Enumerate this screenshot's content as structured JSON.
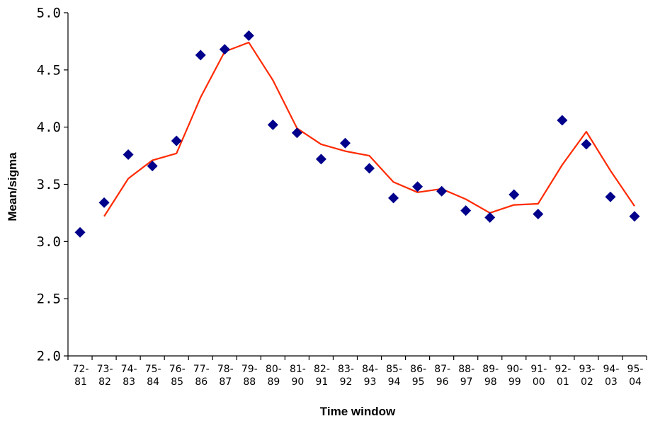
{
  "chart_data": {
    "type": "scatter",
    "title": "",
    "xlabel": "Time window",
    "ylabel": "Mean/sigma",
    "ylim": [
      2.0,
      5.0
    ],
    "yticks": [
      "2.0",
      "2.5",
      "3.0",
      "3.5",
      "4.0",
      "4.5",
      "5.0"
    ],
    "grid": false,
    "legend": "none",
    "categories": [
      [
        "72-",
        "81"
      ],
      [
        "73-",
        "82"
      ],
      [
        "74-",
        "83"
      ],
      [
        "75-",
        "84"
      ],
      [
        "76-",
        "85"
      ],
      [
        "77-",
        "86"
      ],
      [
        "78-",
        "87"
      ],
      [
        "79-",
        "88"
      ],
      [
        "80-",
        "89"
      ],
      [
        "81-",
        "90"
      ],
      [
        "82-",
        "91"
      ],
      [
        "83-",
        "92"
      ],
      [
        "84-",
        "93"
      ],
      [
        "85-",
        "94"
      ],
      [
        "86-",
        "95"
      ],
      [
        "87-",
        "96"
      ],
      [
        "88-",
        "97"
      ],
      [
        "89-",
        "98"
      ],
      [
        "90-",
        "99"
      ],
      [
        "91-",
        "00"
      ],
      [
        "92-",
        "01"
      ],
      [
        "93-",
        "02"
      ],
      [
        "94-",
        "03"
      ],
      [
        "95-",
        "04"
      ]
    ],
    "series": [
      {
        "kind": "points",
        "marker": "diamond",
        "color": "#00008b",
        "values": [
          3.08,
          3.34,
          3.76,
          3.66,
          3.88,
          4.63,
          4.68,
          4.8,
          4.02,
          3.95,
          3.72,
          3.86,
          3.64,
          3.38,
          3.48,
          3.44,
          3.27,
          3.21,
          3.41,
          3.24,
          4.06,
          3.85,
          3.39,
          3.22
        ]
      },
      {
        "kind": "line",
        "color": "#ff2a00",
        "values": [
          null,
          3.22,
          3.55,
          3.71,
          3.77,
          4.26,
          4.66,
          4.74,
          4.41,
          3.99,
          3.85,
          3.79,
          3.75,
          3.52,
          3.43,
          3.46,
          3.37,
          3.25,
          3.32,
          3.33,
          3.67,
          3.96,
          3.62,
          3.31
        ]
      }
    ]
  }
}
